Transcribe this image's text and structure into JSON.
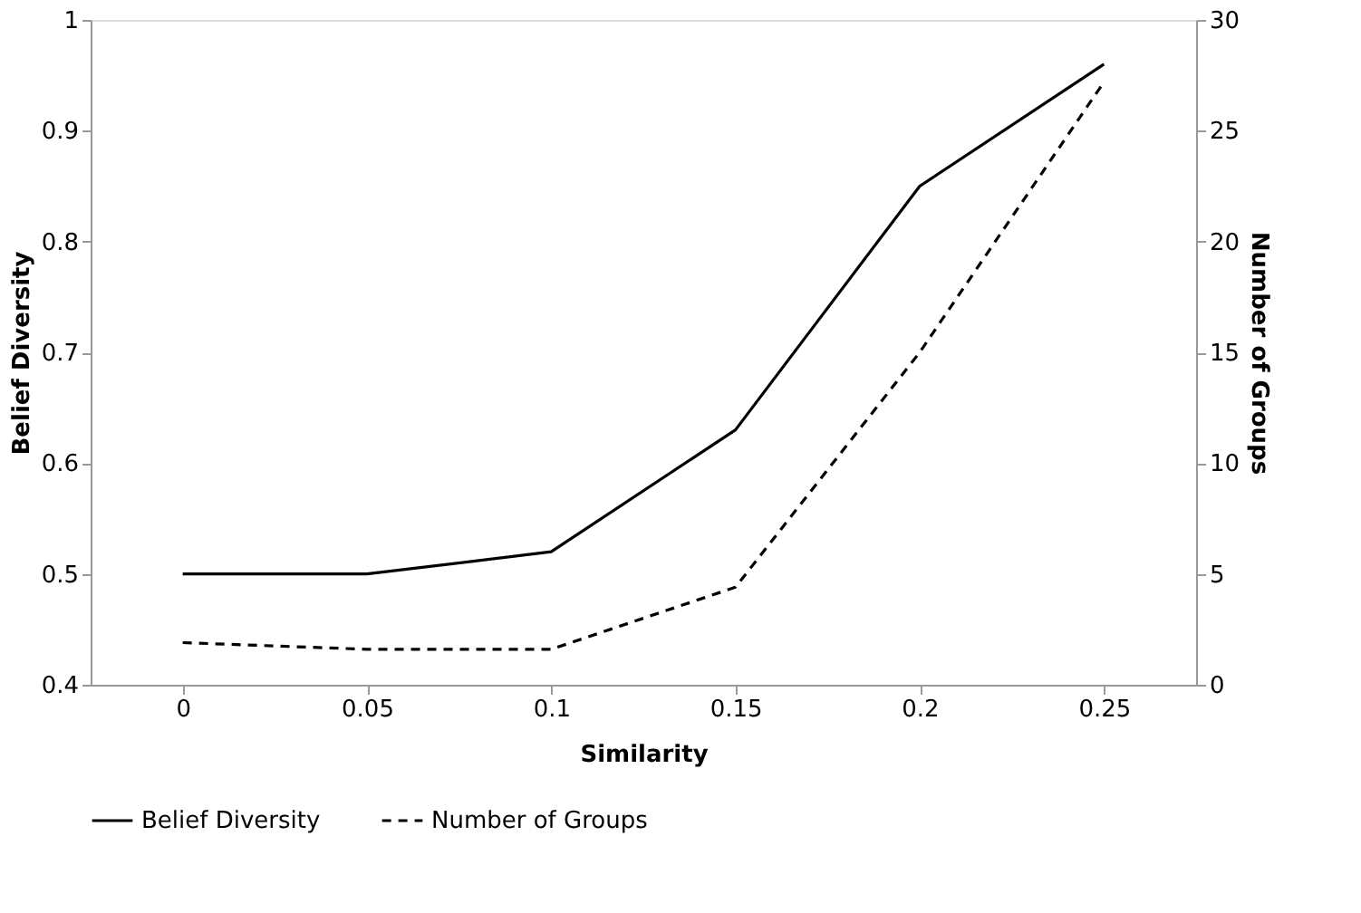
{
  "chart_data": {
    "type": "line",
    "xlabel": "Similarity",
    "ylabel": "Belief Diversity",
    "y2label": "Number of Groups",
    "categories": [
      "0",
      "0.05",
      "0.1",
      "0.15",
      "0.2",
      "0.25"
    ],
    "series": [
      {
        "name": "Belief Diversity",
        "color": "#000000",
        "line_style": "solid",
        "values": [
          0.5,
          0.5,
          0.52,
          0.63,
          0.85,
          0.96
        ]
      },
      {
        "name": "Number of Groups",
        "color": "#000000",
        "line_style": "dashed",
        "axis": "y2",
        "values": [
          1.9,
          1.6,
          1.6,
          4.4,
          15,
          27.2
        ]
      }
    ],
    "ylim": [
      0.4,
      1
    ],
    "yticks": [
      0.4,
      0.5,
      0.6,
      0.7,
      0.8,
      0.9,
      1
    ],
    "y2lim": [
      0,
      30
    ],
    "y2ticks": [
      0,
      5,
      10,
      15,
      20,
      25,
      30
    ],
    "grid": false,
    "legend": "bottom",
    "marker": "none"
  }
}
